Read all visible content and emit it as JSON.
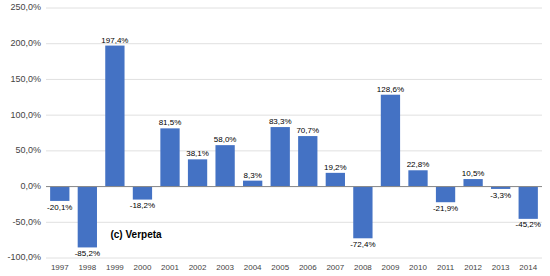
{
  "chart_data": {
    "type": "bar",
    "categories": [
      "1997",
      "1998",
      "1999",
      "2000",
      "2001",
      "2002",
      "2003",
      "2004",
      "2005",
      "2006",
      "2007",
      "2008",
      "2009",
      "2010",
      "2011",
      "2012",
      "2013",
      "2014"
    ],
    "values": [
      -20.1,
      -85.2,
      197.4,
      -18.2,
      81.5,
      38.1,
      58.0,
      8.3,
      83.3,
      70.7,
      19.2,
      -72.4,
      128.6,
      22.8,
      -21.9,
      10.5,
      -3.3,
      -45.2
    ],
    "value_labels": [
      "-20,1%",
      "-85,2%",
      "197,4%",
      "-18,2%",
      "81,5%",
      "38,1%",
      "58,0%",
      "8,3%",
      "83,3%",
      "70,7%",
      "19,2%",
      "-72,4%",
      "128,6%",
      "22,8%",
      "-21,9%",
      "10,5%",
      "-3,3%",
      "-45,2%"
    ],
    "color": "#4472C4",
    "ylim": [
      -100,
      250
    ],
    "yticks": [
      {
        "value": -100,
        "label": "-100,0%"
      },
      {
        "value": -50,
        "label": "-50,0%"
      },
      {
        "value": 0,
        "label": "0,0%"
      },
      {
        "value": 50,
        "label": "50,0%"
      },
      {
        "value": 100,
        "label": "100,0%"
      },
      {
        "value": 150,
        "label": "150,0%"
      },
      {
        "value": 200,
        "label": "200,0%"
      },
      {
        "value": 250,
        "label": "250,0%"
      }
    ],
    "grid": true,
    "data_labels": true,
    "annotations": [
      "(c) Verpeta"
    ]
  }
}
